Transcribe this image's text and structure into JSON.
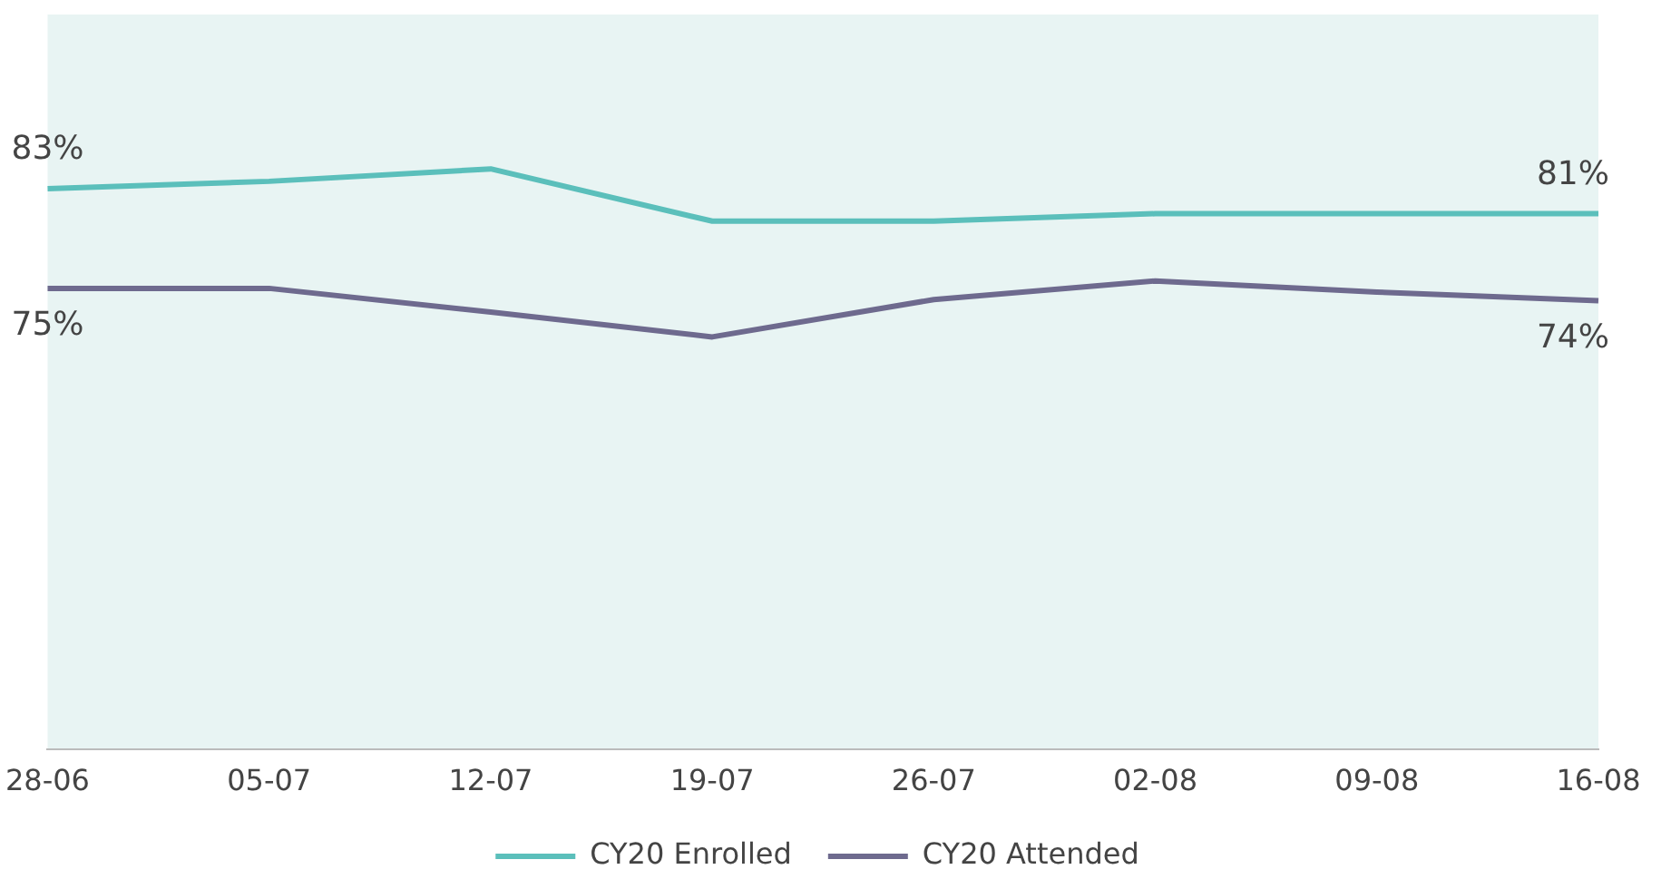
{
  "chart_data": {
    "type": "line",
    "categories": [
      "28-06",
      "05-07",
      "12-07",
      "19-07",
      "26-07",
      "02-08",
      "09-08",
      "16-08"
    ],
    "series": [
      {
        "name": "CY20 Enrolled",
        "color": "#5bbfbb",
        "values": [
          83,
          83.6,
          84.6,
          80.4,
          80.4,
          81,
          81,
          81
        ],
        "value_labels": [
          "83%",
          null,
          null,
          null,
          null,
          null,
          null,
          "81%"
        ]
      },
      {
        "name": "CY20 Attended",
        "color": "#6e6a8e",
        "values": [
          75,
          75,
          73.1,
          71.1,
          74.1,
          75.6,
          74.7,
          74
        ],
        "value_labels": [
          "75%",
          null,
          null,
          null,
          null,
          null,
          null,
          "74%"
        ]
      }
    ],
    "ylim": [
      38,
      97
    ],
    "tick_labels": "x",
    "legend": "bottom",
    "grid": false,
    "marker": "none",
    "line_style": "solid"
  }
}
